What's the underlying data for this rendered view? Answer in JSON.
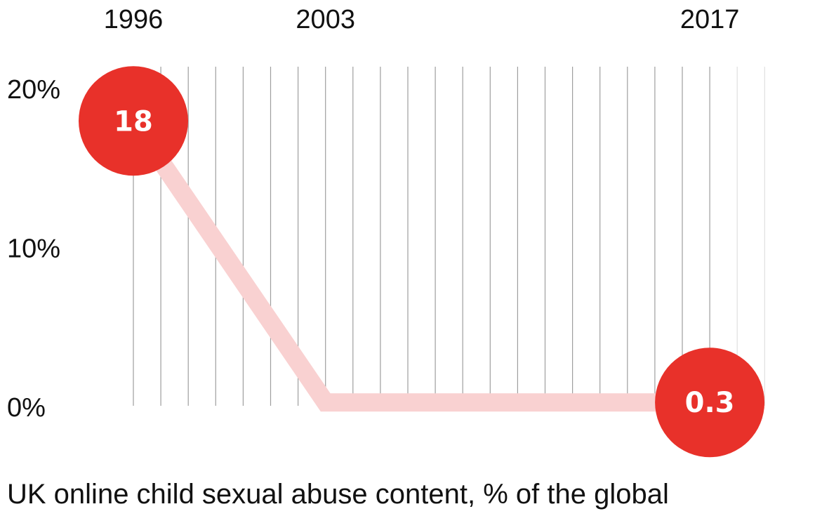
{
  "chart_data": {
    "type": "line",
    "title": "UK online child sexual abuse content, % of the global",
    "x_start": 1996,
    "x_end": 2019,
    "x_tick_labels": [
      "1996",
      "2003",
      "2017"
    ],
    "y_tick_labels": [
      "20%",
      "10%",
      "0%"
    ],
    "ylim": [
      0,
      20
    ],
    "series": [
      {
        "points": [
          {
            "x": 1996,
            "y": 18
          },
          {
            "x": 2003,
            "y": 0.3
          },
          {
            "x": 2017,
            "y": 0.3
          }
        ]
      }
    ],
    "highlighted_points": [
      {
        "x": 1996,
        "y": 18,
        "label": "18"
      },
      {
        "x": 2017,
        "y": 0.3,
        "label": "0.3"
      }
    ],
    "grid": true
  },
  "colors": {
    "marker": "#e8312a",
    "line": "#f9d1d1",
    "grid": "#9e9e9e",
    "grid_light": "#e0e0e0",
    "text": "#111111"
  }
}
